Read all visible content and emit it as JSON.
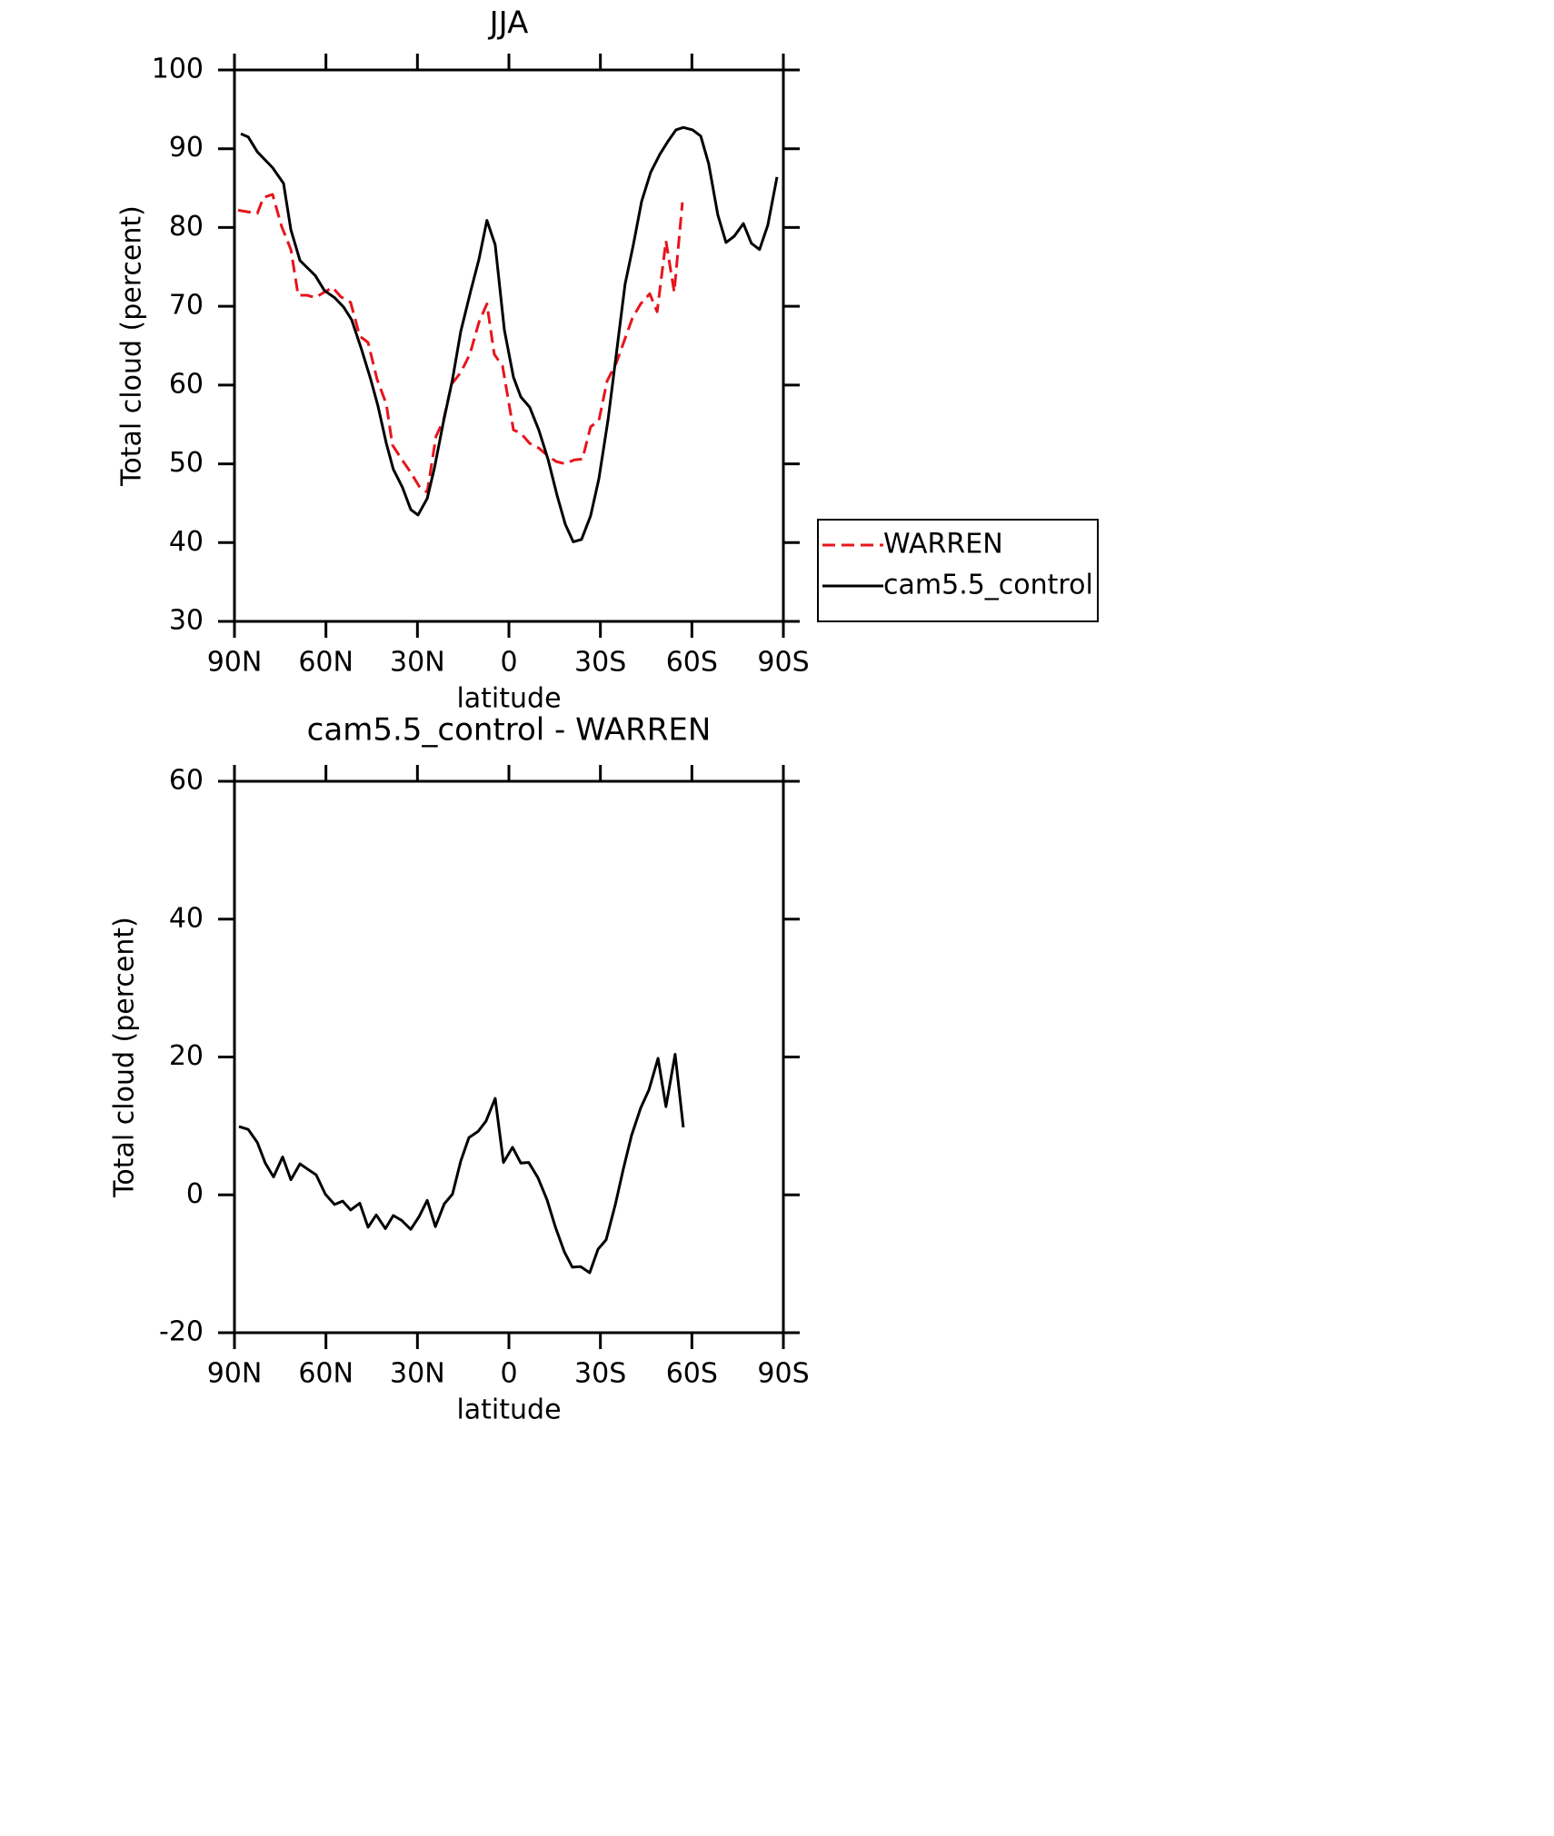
{
  "chart_data": [
    {
      "type": "line",
      "title": "JJA",
      "xlabel": "latitude",
      "ylabel": "Total cloud (percent)",
      "xlim": [
        90,
        -90
      ],
      "xticks": [
        {
          "value": 90,
          "label": "90N"
        },
        {
          "value": 60,
          "label": "60N"
        },
        {
          "value": 30,
          "label": "30N"
        },
        0,
        {
          "value": -30,
          "label": "30S"
        },
        {
          "value": -60,
          "label": "60S"
        },
        {
          "value": -90,
          "label": "90S"
        }
      ],
      "ylim": [
        30,
        100
      ],
      "yticks": [
        30,
        40,
        50,
        60,
        70,
        80,
        90,
        100
      ],
      "legend": "right",
      "series": [
        {
          "name": "WARREN",
          "color": "#e8141c",
          "dash": true,
          "x": [
            88.8,
            85.8,
            82.5,
            80.5,
            77.5,
            74.5,
            71.5,
            69.1,
            66.2,
            63.5,
            60.5,
            57.8,
            55.1,
            51.9,
            48.9,
            46.2,
            43.2,
            40.2,
            38.2,
            35.2,
            32.2,
            29.2,
            26.8,
            23.9,
            21.5,
            18.8,
            15.8,
            12.8,
            9.8,
            7.2,
            4.8,
            2.1,
            -1.5,
            -3.9,
            -6.8,
            -9.8,
            -12.8,
            -15.5,
            -18.5,
            -21.4,
            -24.1,
            -26.8,
            -29.5,
            -32.2,
            -35.2,
            -38.1,
            -40.5,
            -43.2,
            -46.2,
            -48.6,
            -51.5,
            -54.2,
            -56.9
          ],
          "values": [
            82.2,
            82.0,
            81.8,
            83.8,
            84.2,
            80.1,
            77.2,
            71.4,
            71.4,
            71.1,
            71.8,
            72.4,
            71.2,
            70.5,
            66.2,
            65.4,
            60.7,
            57.6,
            52.4,
            50.6,
            48.9,
            47.0,
            46.4,
            53.5,
            55.5,
            60.1,
            61.6,
            63.9,
            68.0,
            70.3,
            63.9,
            62.4,
            54.3,
            53.9,
            52.6,
            52.0,
            51.0,
            50.3,
            50.0,
            50.5,
            50.6,
            54.7,
            55.5,
            60.5,
            62.8,
            65.9,
            68.5,
            70.3,
            71.6,
            69.3,
            78.3,
            71.8,
            83.2
          ]
        },
        {
          "name": "cam5.5_control",
          "color": "#000000",
          "dash": false,
          "x": [
            87.9,
            85.5,
            82.5,
            77.5,
            73.9,
            71.5,
            68.5,
            63.5,
            60.5,
            57.2,
            54.2,
            51.6,
            48.3,
            45.3,
            42.9,
            40.2,
            37.9,
            34.9,
            32.2,
            29.8,
            26.8,
            24.4,
            21.5,
            18.5,
            15.8,
            12.5,
            9.8,
            7.2,
            4.5,
            1.5,
            -1.5,
            -3.9,
            -6.8,
            -9.8,
            -12.8,
            -15.8,
            -18.5,
            -21.1,
            -23.8,
            -26.8,
            -29.5,
            -32.5,
            -35.4,
            -38.1,
            -40.8,
            -43.5,
            -46.5,
            -49.5,
            -52.1,
            -54.8,
            -57.2,
            -60.2,
            -62.9,
            -65.5,
            -68.5,
            -71.2,
            -73.9,
            -76.9,
            -79.5,
            -82.2,
            -84.9,
            -87.9
          ],
          "values": [
            91.9,
            91.5,
            89.6,
            87.6,
            85.6,
            79.7,
            75.8,
            73.9,
            72.0,
            71.1,
            69.9,
            68.3,
            64.5,
            60.7,
            57.3,
            52.6,
            49.3,
            47.0,
            44.2,
            43.5,
            45.6,
            49.5,
            55.3,
            60.7,
            66.8,
            72.0,
            76.0,
            80.9,
            77.8,
            67.0,
            61.0,
            58.5,
            57.2,
            54.3,
            50.6,
            46.0,
            42.3,
            40.1,
            40.4,
            43.4,
            48.1,
            55.6,
            64.5,
            72.8,
            77.8,
            83.3,
            87.0,
            89.3,
            90.9,
            92.4,
            92.7,
            92.4,
            91.6,
            88.1,
            81.6,
            78.1,
            78.9,
            80.5,
            78.0,
            77.2,
            80.3,
            86.4
          ]
        }
      ]
    },
    {
      "type": "line",
      "title": "cam5.5_control - WARREN",
      "xlabel": "latitude",
      "ylabel": "Total cloud (percent)",
      "xlim": [
        90,
        -90
      ],
      "xticks": [
        {
          "value": 90,
          "label": "90N"
        },
        {
          "value": 60,
          "label": "60N"
        },
        {
          "value": 30,
          "label": "30N"
        },
        0,
        {
          "value": -30,
          "label": "30S"
        },
        {
          "value": -60,
          "label": "60S"
        },
        {
          "value": -90,
          "label": "90S"
        }
      ],
      "ylim": [
        -20,
        60
      ],
      "yticks": [
        -20,
        0,
        20,
        40,
        60
      ],
      "series": [
        {
          "color": "#000000",
          "dash": false,
          "x": [
            88.5,
            85.5,
            82.5,
            79.9,
            77.2,
            74.2,
            71.5,
            68.5,
            65.9,
            63.2,
            60.2,
            57.2,
            54.5,
            51.9,
            48.9,
            46.2,
            43.5,
            40.5,
            37.9,
            35.2,
            32.2,
            29.5,
            26.8,
            24.1,
            21.2,
            18.5,
            15.8,
            13.1,
            10.1,
            7.5,
            4.5,
            1.8,
            -1.2,
            -3.9,
            -6.5,
            -9.5,
            -12.5,
            -15.2,
            -18.2,
            -20.8,
            -23.5,
            -26.5,
            -29.2,
            -31.9,
            -34.9,
            -37.5,
            -40.2,
            -43.2,
            -45.9,
            -48.9,
            -51.5,
            -54.5,
            -57.2
          ],
          "values": [
            9.9,
            9.5,
            7.6,
            4.6,
            2.6,
            5.5,
            2.2,
            4.5,
            3.7,
            2.9,
            0.1,
            -1.4,
            -0.9,
            -2.2,
            -1.2,
            -4.7,
            -2.9,
            -4.9,
            -3.0,
            -3.7,
            -5.0,
            -3.2,
            -0.8,
            -4.6,
            -1.3,
            0.1,
            4.9,
            8.3,
            9.2,
            10.7,
            14.0,
            4.7,
            6.9,
            4.6,
            4.7,
            2.5,
            -0.7,
            -4.6,
            -8.3,
            -10.5,
            -10.4,
            -11.3,
            -7.9,
            -6.5,
            -1.4,
            3.7,
            8.6,
            12.6,
            15.2,
            19.8,
            12.8,
            20.4,
            9.8
          ]
        }
      ]
    }
  ]
}
